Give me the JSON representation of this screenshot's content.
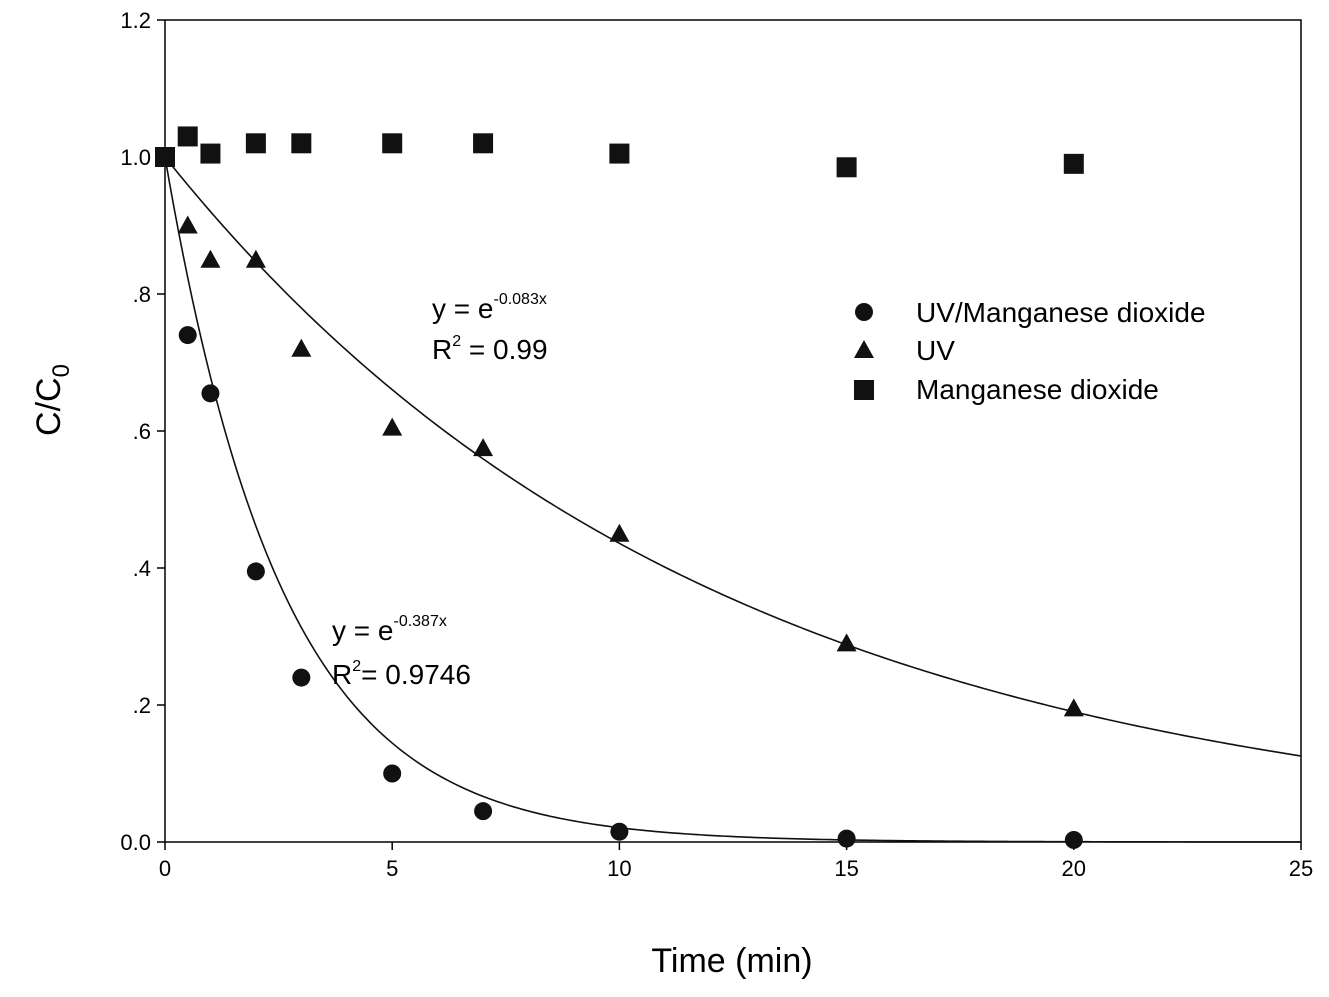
{
  "chart_data": {
    "type": "scatter",
    "xlabel": "Time (min)",
    "ylabel": "C/C",
    "ylabel_sub": "0",
    "xlim": [
      0,
      25
    ],
    "ylim": [
      0.0,
      1.2
    ],
    "xticks": [
      0,
      5,
      10,
      15,
      20,
      25
    ],
    "xtick_labels": [
      "0",
      "5",
      "10",
      "15",
      "20",
      "25"
    ],
    "yticks": [
      0.0,
      0.2,
      0.4,
      0.6,
      0.8,
      1.0,
      1.2
    ],
    "ytick_labels": [
      "0.0",
      ".2",
      ".4",
      ".6",
      ".8",
      "1.0",
      "1.2"
    ],
    "grid": false,
    "legend_position": "top-right",
    "series": [
      {
        "name": "UV/Manganese dioxide",
        "marker": "circle",
        "x": [
          0,
          0.5,
          1,
          2,
          3,
          5,
          7,
          10,
          15,
          20
        ],
        "y": [
          1.0,
          0.74,
          0.655,
          0.395,
          0.24,
          0.1,
          0.045,
          0.015,
          0.005,
          0.003
        ],
        "fit_k": 0.387,
        "fit_equation": "y = e",
        "fit_exponent": "-0.387x",
        "fit_r2_label": "R",
        "fit_r2_value": "= 0.9746"
      },
      {
        "name": "UV",
        "marker": "triangle",
        "x": [
          0,
          0.5,
          1,
          2,
          3,
          5,
          7,
          10,
          15,
          20
        ],
        "y": [
          1.0,
          0.9,
          0.85,
          0.85,
          0.72,
          0.605,
          0.575,
          0.45,
          0.29,
          0.195
        ],
        "fit_k": 0.083,
        "fit_equation": "y = e",
        "fit_exponent": "-0.083x",
        "fit_r2_label": "R",
        "fit_r2_value": " = 0.99"
      },
      {
        "name": "Manganese dioxide",
        "marker": "square",
        "x": [
          0,
          0.5,
          1,
          2,
          3,
          5,
          7,
          10,
          15,
          20
        ],
        "y": [
          1.0,
          1.03,
          1.005,
          1.02,
          1.02,
          1.02,
          1.02,
          1.005,
          0.985,
          0.99
        ]
      }
    ]
  }
}
